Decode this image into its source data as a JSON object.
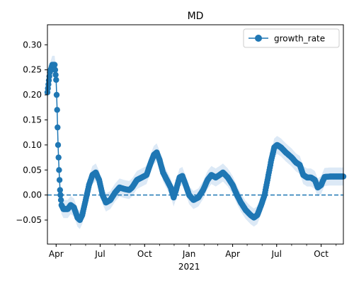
{
  "chart_data": {
    "type": "line",
    "title": "MD",
    "xlabel": "",
    "ylabel": "",
    "x_range": [
      "2020-03-14",
      "2021-11-16"
    ],
    "ylim": [
      -0.098,
      0.34
    ],
    "x_ticks": [
      {
        "date": "2020-04-01",
        "label": "Apr"
      },
      {
        "date": "2020-07-01",
        "label": "Jul"
      },
      {
        "date": "2020-10-01",
        "label": "Oct"
      },
      {
        "date": "2021-01-01",
        "label": "Jan"
      },
      {
        "date": "2021-04-01",
        "label": "Apr"
      },
      {
        "date": "2021-07-01",
        "label": "Jul"
      },
      {
        "date": "2021-10-01",
        "label": "Oct"
      }
    ],
    "x_year_label": {
      "date": "2021-01-01",
      "label": "2021"
    },
    "y_ticks": [
      -0.05,
      0.0,
      0.05,
      0.1,
      0.15,
      0.2,
      0.25,
      0.3
    ],
    "y_tick_labels": [
      "−0.05",
      "0.00",
      "0.05",
      "0.10",
      "0.15",
      "0.20",
      "0.25",
      "0.30"
    ],
    "reference_line": {
      "y": 0.0,
      "style": "dashed"
    },
    "legend": {
      "position": "top-right"
    },
    "grid": false,
    "colors": {
      "series": "#1f77b4",
      "band": "#dce9f6"
    },
    "series": [
      {
        "name": "growth_rate",
        "band_halfwidth": 0.018,
        "points": [
          [
            "2020-03-14",
            0.205
          ],
          [
            "2020-03-19",
            0.245
          ],
          [
            "2020-03-24",
            0.26
          ],
          [
            "2020-03-29",
            0.26
          ],
          [
            "2020-04-01",
            0.23
          ],
          [
            "2020-04-03",
            0.17
          ],
          [
            "2020-04-05",
            0.1
          ],
          [
            "2020-04-07",
            0.05
          ],
          [
            "2020-04-09",
            0.01
          ],
          [
            "2020-04-12",
            -0.02
          ],
          [
            "2020-04-16",
            -0.028
          ],
          [
            "2020-04-25",
            -0.028
          ],
          [
            "2020-05-01",
            -0.02
          ],
          [
            "2020-05-08",
            -0.025
          ],
          [
            "2020-05-15",
            -0.045
          ],
          [
            "2020-05-20",
            -0.05
          ],
          [
            "2020-05-25",
            -0.04
          ],
          [
            "2020-06-01",
            -0.01
          ],
          [
            "2020-06-08",
            0.02
          ],
          [
            "2020-06-15",
            0.04
          ],
          [
            "2020-06-22",
            0.045
          ],
          [
            "2020-06-29",
            0.03
          ],
          [
            "2020-07-06",
            0.0
          ],
          [
            "2020-07-13",
            -0.015
          ],
          [
            "2020-07-22",
            -0.01
          ],
          [
            "2020-08-01",
            0.005
          ],
          [
            "2020-08-10",
            0.015
          ],
          [
            "2020-08-20",
            0.012
          ],
          [
            "2020-08-30",
            0.01
          ],
          [
            "2020-09-05",
            0.015
          ],
          [
            "2020-09-15",
            0.03
          ],
          [
            "2020-09-25",
            0.035
          ],
          [
            "2020-10-05",
            0.04
          ],
          [
            "2020-10-12",
            0.06
          ],
          [
            "2020-10-20",
            0.08
          ],
          [
            "2020-10-26",
            0.085
          ],
          [
            "2020-11-01",
            0.07
          ],
          [
            "2020-11-08",
            0.045
          ],
          [
            "2020-11-16",
            0.03
          ],
          [
            "2020-11-24",
            0.015
          ],
          [
            "2020-11-30",
            -0.005
          ],
          [
            "2020-12-05",
            0.01
          ],
          [
            "2020-12-12",
            0.035
          ],
          [
            "2020-12-18",
            0.038
          ],
          [
            "2020-12-25",
            0.02
          ],
          [
            "2021-01-01",
            0.0
          ],
          [
            "2021-01-10",
            -0.01
          ],
          [
            "2021-01-20",
            -0.005
          ],
          [
            "2021-01-30",
            0.01
          ],
          [
            "2021-02-08",
            0.03
          ],
          [
            "2021-02-16",
            0.04
          ],
          [
            "2021-02-25",
            0.035
          ],
          [
            "2021-03-05",
            0.04
          ],
          [
            "2021-03-12",
            0.045
          ],
          [
            "2021-03-22",
            0.035
          ],
          [
            "2021-04-01",
            0.02
          ],
          [
            "2021-04-10",
            0.0
          ],
          [
            "2021-04-18",
            -0.015
          ],
          [
            "2021-04-28",
            -0.03
          ],
          [
            "2021-05-08",
            -0.04
          ],
          [
            "2021-05-15",
            -0.045
          ],
          [
            "2021-05-22",
            -0.04
          ],
          [
            "2021-05-30",
            -0.02
          ],
          [
            "2021-06-06",
            0.0
          ],
          [
            "2021-06-12",
            0.03
          ],
          [
            "2021-06-20",
            0.07
          ],
          [
            "2021-06-26",
            0.095
          ],
          [
            "2021-07-02",
            0.1
          ],
          [
            "2021-07-10",
            0.095
          ],
          [
            "2021-07-20",
            0.085
          ],
          [
            "2021-08-01",
            0.075
          ],
          [
            "2021-08-10",
            0.065
          ],
          [
            "2021-08-18",
            0.06
          ],
          [
            "2021-08-25",
            0.04
          ],
          [
            "2021-09-02",
            0.035
          ],
          [
            "2021-09-10",
            0.035
          ],
          [
            "2021-09-18",
            0.03
          ],
          [
            "2021-09-24",
            0.015
          ],
          [
            "2021-10-01",
            0.02
          ],
          [
            "2021-10-08",
            0.036
          ],
          [
            "2021-10-20",
            0.037
          ],
          [
            "2021-11-05",
            0.037
          ],
          [
            "2021-11-16",
            0.037
          ]
        ]
      }
    ]
  }
}
